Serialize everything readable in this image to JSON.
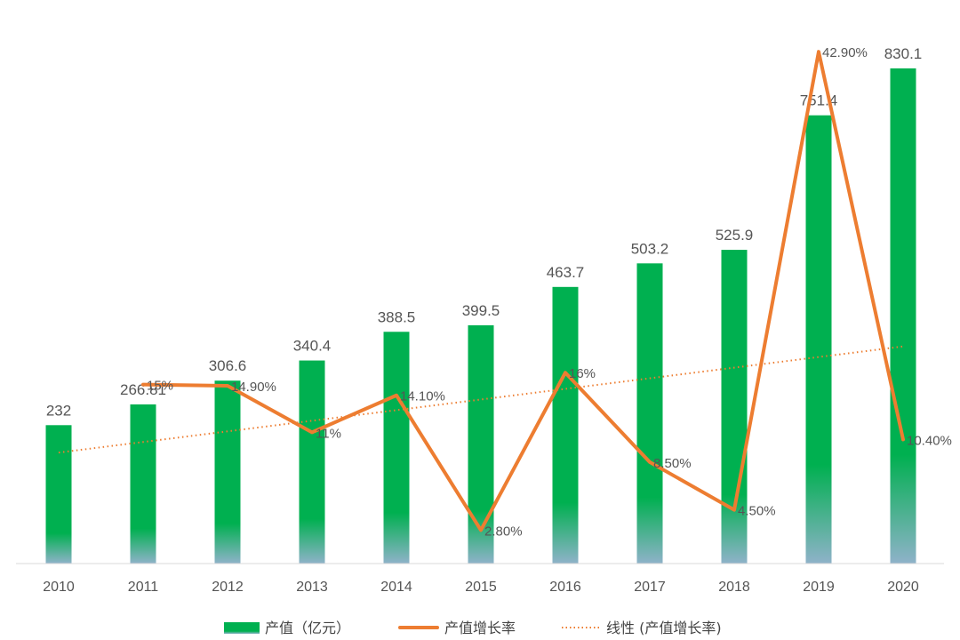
{
  "chart_data": {
    "type": "bar",
    "categories": [
      "2010",
      "2011",
      "2012",
      "2013",
      "2014",
      "2015",
      "2016",
      "2017",
      "2018",
      "2019",
      "2020"
    ],
    "series": [
      {
        "name": "产值（亿元）",
        "type": "bar",
        "axis": "left",
        "values": [
          232,
          266.81,
          306.6,
          340.4,
          388.5,
          399.5,
          463.7,
          503.2,
          525.9,
          751.4,
          830.1
        ],
        "labels": [
          "232",
          "266.81",
          "306.6",
          "340.4",
          "388.5",
          "399.5",
          "463.7",
          "503.2",
          "525.9",
          "751.4",
          "830.1"
        ],
        "color": "#00b050"
      },
      {
        "name": "产值增长率",
        "type": "line",
        "axis": "right",
        "values": [
          null,
          15,
          14.9,
          11,
          14.1,
          2.8,
          16,
          8.5,
          4.5,
          42.9,
          10.4
        ],
        "labels": [
          "",
          "15%",
          "14.90%",
          "11%",
          "14.10%",
          "2.80%",
          "16%",
          "8.50%",
          "4.50%",
          "42.90%",
          "10.40%"
        ],
        "color": "#ed7d31"
      },
      {
        "name": "线性 (产值增长率)",
        "type": "trendline",
        "axis": "right",
        "start": 9.3,
        "end": 18.2,
        "color": "#ed7d31"
      }
    ],
    "ylim_left": [
      0,
      900
    ],
    "ylim_right": [
      0,
      45
    ],
    "grid": false,
    "legend": "bottom"
  }
}
